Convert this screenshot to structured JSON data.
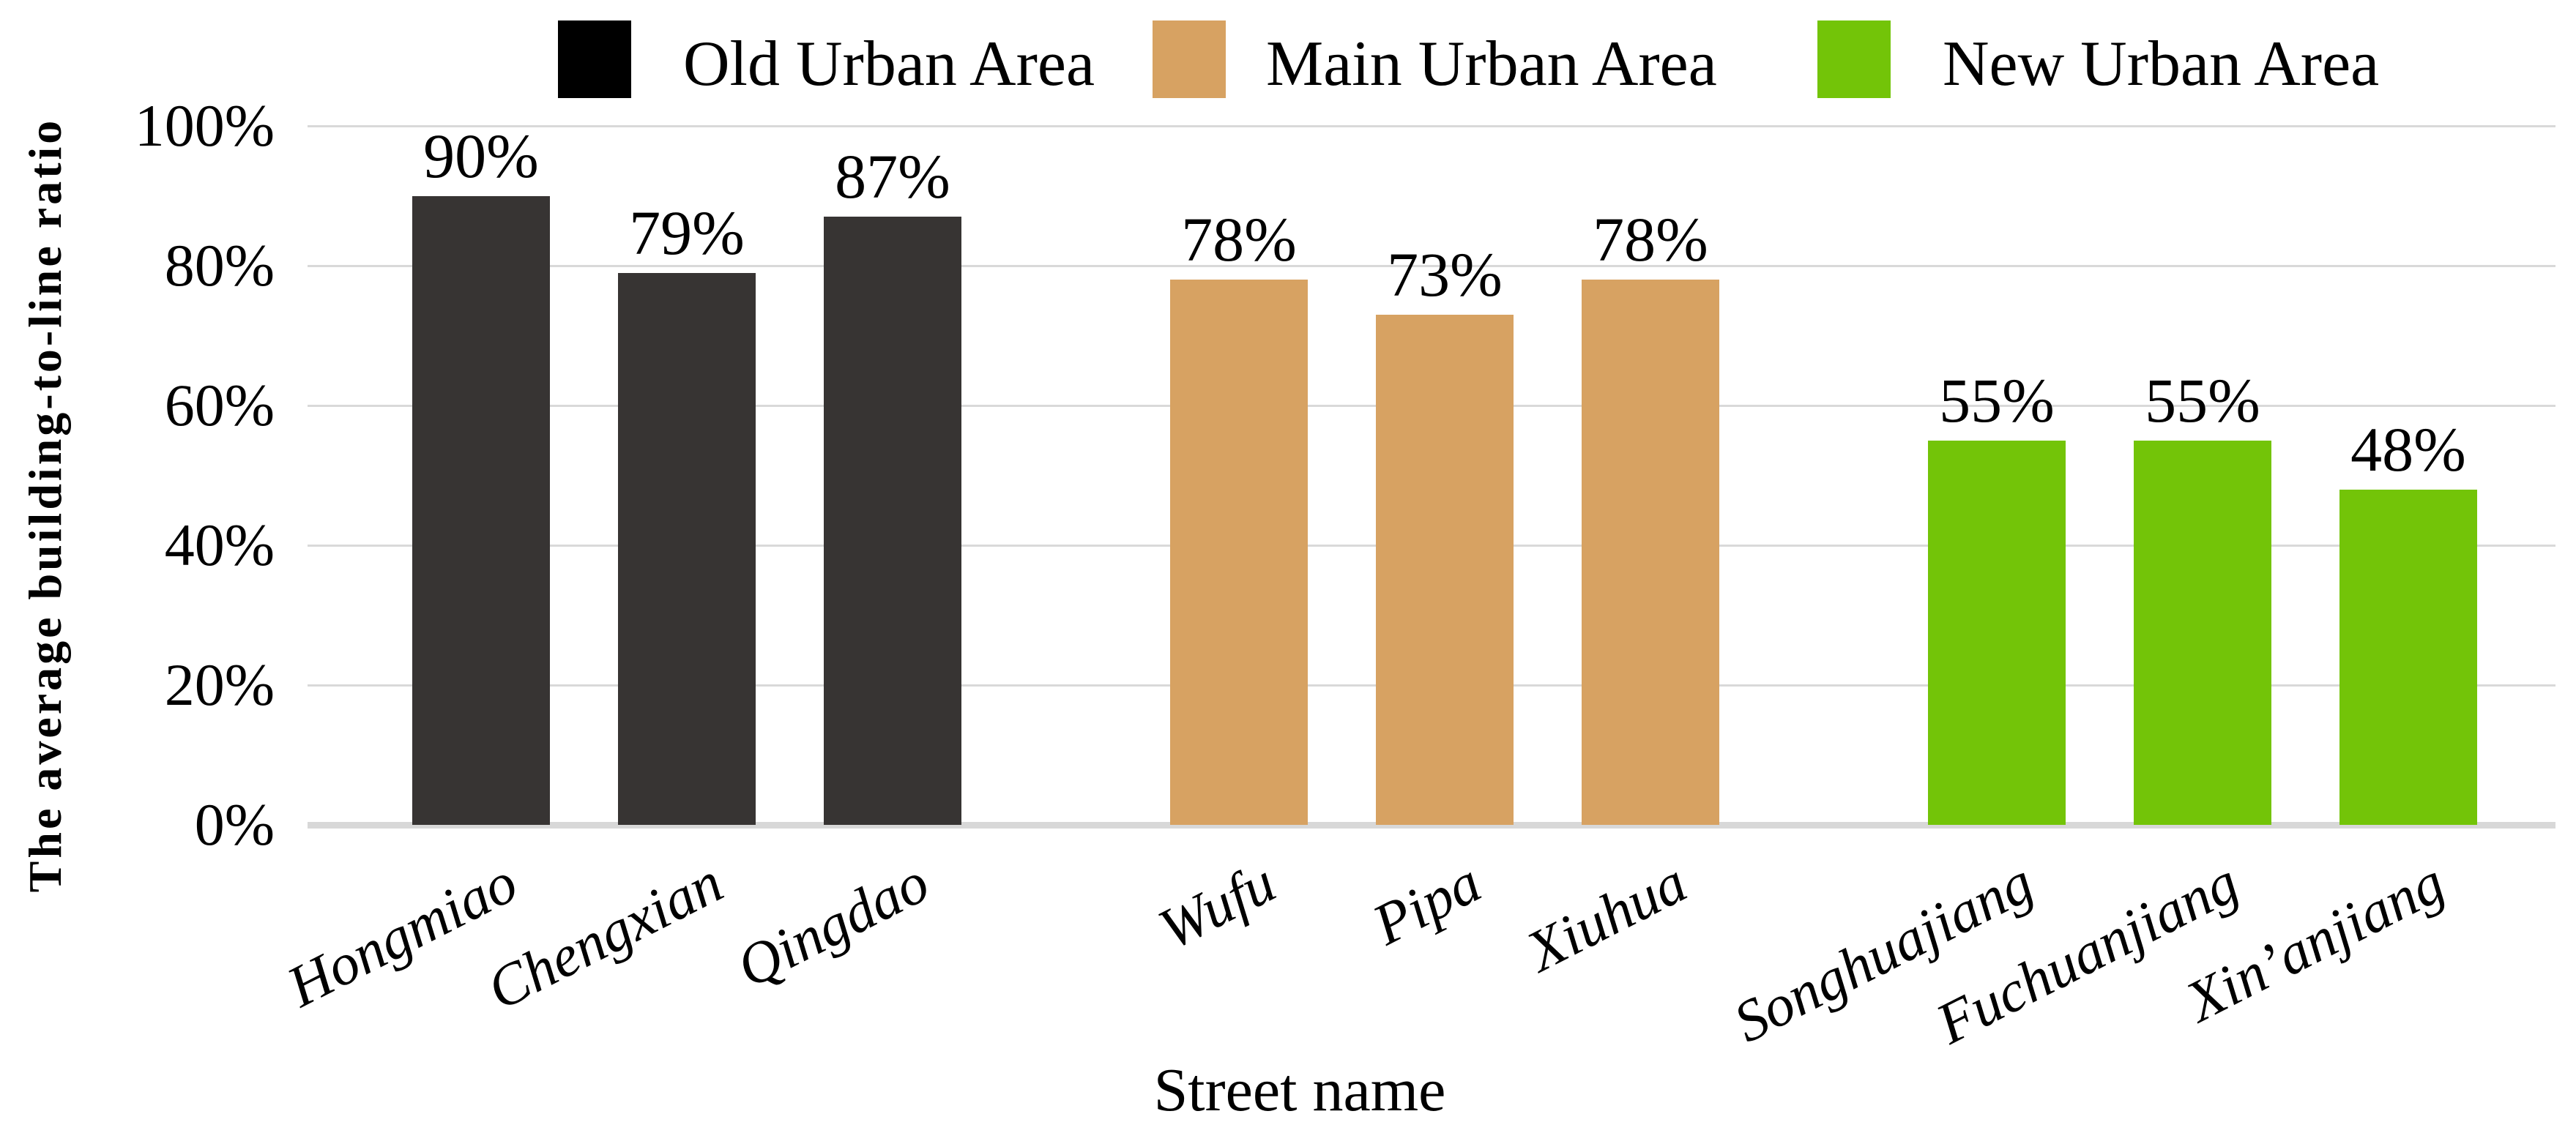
{
  "chart_data": {
    "type": "bar",
    "title": "",
    "xlabel": "Street name",
    "ylabel": "The average building-to-line ratio",
    "ylim": [
      0,
      100
    ],
    "grid": true,
    "legend_position": "top",
    "yticks": [
      {
        "value": 0,
        "label": "0%"
      },
      {
        "value": 20,
        "label": "20%"
      },
      {
        "value": 40,
        "label": "40%"
      },
      {
        "value": 60,
        "label": "60%"
      },
      {
        "value": 80,
        "label": "80%"
      },
      {
        "value": 100,
        "label": "100%"
      }
    ],
    "groups": [
      {
        "name": "Old Urban Area",
        "legend_color": "#000000",
        "bar_color": "#373433",
        "bars": [
          {
            "category": "Hongmiao",
            "value": 90,
            "label": "90%"
          },
          {
            "category": "Chengxian",
            "value": 79,
            "label": "79%"
          },
          {
            "category": "Qingdao",
            "value": 87,
            "label": "87%"
          }
        ]
      },
      {
        "name": "Main Urban Area",
        "legend_color": "#D7A262",
        "bar_color": "#D7A262",
        "bars": [
          {
            "category": "Wufu",
            "value": 78,
            "label": "78%"
          },
          {
            "category": "Pipa",
            "value": 73,
            "label": "73%"
          },
          {
            "category": "Xiuhua",
            "value": 78,
            "label": "78%"
          }
        ]
      },
      {
        "name": "New Urban Area",
        "legend_color": "#73C408",
        "bar_color": "#73C408",
        "bars": [
          {
            "category": "Songhuajiang",
            "value": 55,
            "label": "55%"
          },
          {
            "category": "Fuchuanjiang",
            "value": 55,
            "label": "55%"
          },
          {
            "category": "Xin’anjiang",
            "value": 48,
            "label": "48%"
          }
        ]
      }
    ]
  }
}
